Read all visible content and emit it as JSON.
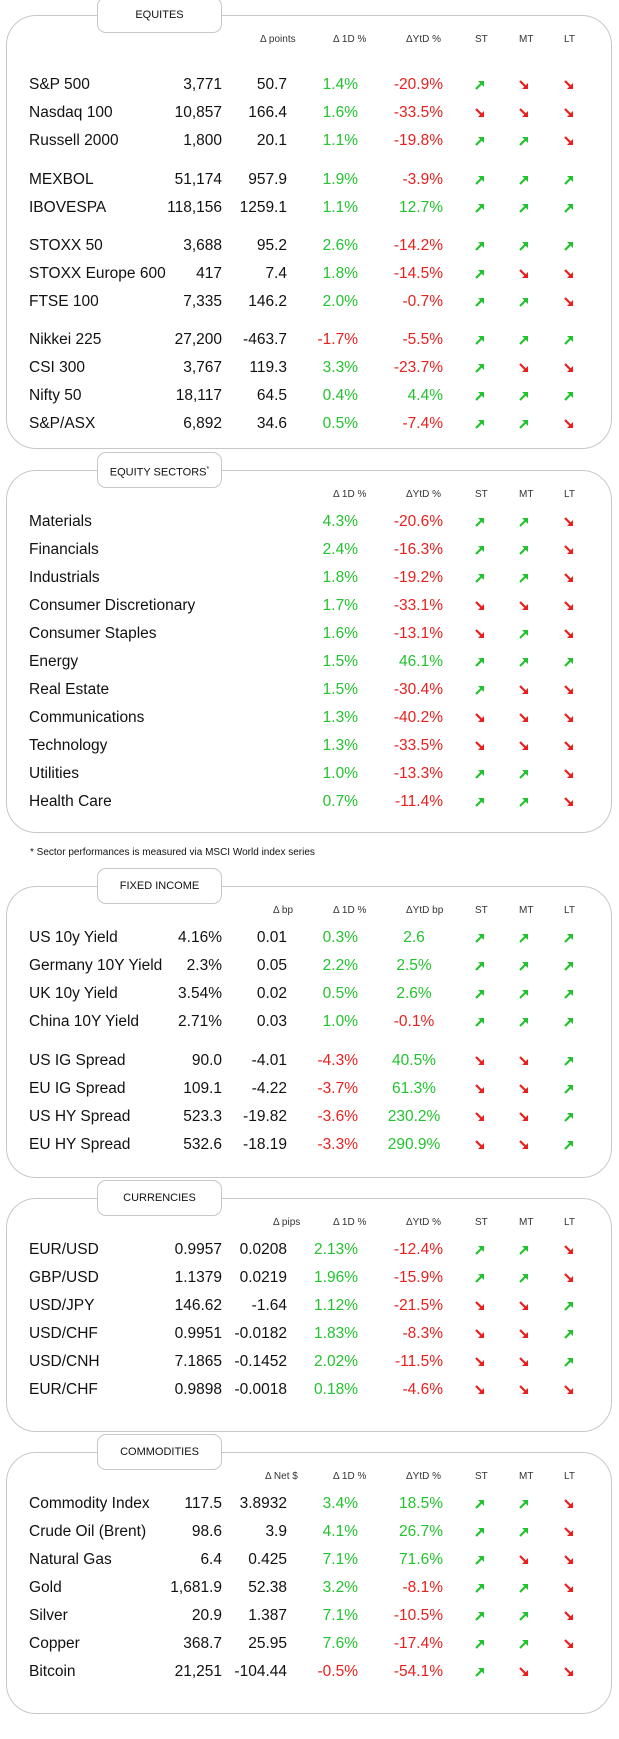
{
  "colors": {
    "up": "#22c32e",
    "down": "#e8201e",
    "border": "#c8c8c8"
  },
  "icons": {
    "up": "arrow-up-right",
    "down": "arrow-down-right"
  },
  "equities": {
    "title": "EQUITES",
    "headers": {
      "chg": "Δ points",
      "d1": "Δ 1D %",
      "ytd": "ΔYtD %",
      "st": "ST",
      "mt": "MT",
      "lt": "LT"
    },
    "rows": [
      {
        "name": "S&P 500",
        "value": "3,771",
        "chg": "50.7",
        "d1": "1.4%",
        "ytd": "-20.9%",
        "st": "up",
        "mt": "down",
        "lt": "down"
      },
      {
        "name": "Nasdaq 100",
        "value": "10,857",
        "chg": "166.4",
        "d1": "1.6%",
        "ytd": "-33.5%",
        "st": "down",
        "mt": "down",
        "lt": "down"
      },
      {
        "name": "Russell 2000",
        "value": "1,800",
        "chg": "20.1",
        "d1": "1.1%",
        "ytd": "-19.8%",
        "st": "up",
        "mt": "up",
        "lt": "down"
      },
      {
        "name": "MEXBOL",
        "value": "51,174",
        "chg": "957.9",
        "d1": "1.9%",
        "ytd": "-3.9%",
        "st": "up",
        "mt": "up",
        "lt": "up"
      },
      {
        "name": "IBOVESPA",
        "value": "118,156",
        "chg": "1259.1",
        "d1": "1.1%",
        "ytd": "12.7%",
        "st": "up",
        "mt": "up",
        "lt": "up"
      },
      {
        "name": "STOXX 50",
        "value": "3,688",
        "chg": "95.2",
        "d1": "2.6%",
        "ytd": "-14.2%",
        "st": "up",
        "mt": "up",
        "lt": "up"
      },
      {
        "name": "STOXX Europe 600",
        "value": "417",
        "chg": "7.4",
        "d1": "1.8%",
        "ytd": "-14.5%",
        "st": "up",
        "mt": "down",
        "lt": "down"
      },
      {
        "name": "FTSE 100",
        "value": "7,335",
        "chg": "146.2",
        "d1": "2.0%",
        "ytd": "-0.7%",
        "st": "up",
        "mt": "up",
        "lt": "down"
      },
      {
        "name": "Nikkei 225",
        "value": "27,200",
        "chg": "-463.7",
        "d1": "-1.7%",
        "ytd": "-5.5%",
        "st": "up",
        "mt": "up",
        "lt": "up"
      },
      {
        "name": "CSI 300",
        "value": "3,767",
        "chg": "119.3",
        "d1": "3.3%",
        "ytd": "-23.7%",
        "st": "up",
        "mt": "down",
        "lt": "down"
      },
      {
        "name": "Nifty  50",
        "value": "18,117",
        "chg": "64.5",
        "d1": "0.4%",
        "ytd": "4.4%",
        "st": "up",
        "mt": "up",
        "lt": "up"
      },
      {
        "name": "S&P/ASX",
        "value": "6,892",
        "chg": "34.6",
        "d1": "0.5%",
        "ytd": "-7.4%",
        "st": "up",
        "mt": "up",
        "lt": "down"
      }
    ]
  },
  "sectors": {
    "title": "EQUITY SECTORS",
    "title_mark": "*",
    "headers": {
      "d1": "Δ 1D %",
      "ytd": "ΔYtD %",
      "st": "ST",
      "mt": "MT",
      "lt": "LT"
    },
    "rows": [
      {
        "name": "Materials",
        "d1": "4.3%",
        "ytd": "-20.6%",
        "st": "up",
        "mt": "up",
        "lt": "down"
      },
      {
        "name": "Financials",
        "d1": "2.4%",
        "ytd": "-16.3%",
        "st": "up",
        "mt": "up",
        "lt": "down"
      },
      {
        "name": "Industrials",
        "d1": "1.8%",
        "ytd": "-19.2%",
        "st": "up",
        "mt": "up",
        "lt": "down"
      },
      {
        "name": "Consumer Discretionary",
        "d1": "1.7%",
        "ytd": "-33.1%",
        "st": "down",
        "mt": "down",
        "lt": "down"
      },
      {
        "name": "Consumer Staples",
        "d1": "1.6%",
        "ytd": "-13.1%",
        "st": "down",
        "mt": "up",
        "lt": "down"
      },
      {
        "name": "Energy",
        "d1": "1.5%",
        "ytd": "46.1%",
        "st": "up",
        "mt": "up",
        "lt": "up"
      },
      {
        "name": "Real Estate",
        "d1": "1.5%",
        "ytd": "-30.4%",
        "st": "up",
        "mt": "down",
        "lt": "down"
      },
      {
        "name": "Communications",
        "d1": "1.3%",
        "ytd": "-40.2%",
        "st": "down",
        "mt": "down",
        "lt": "down"
      },
      {
        "name": "Technology",
        "d1": "1.3%",
        "ytd": "-33.5%",
        "st": "down",
        "mt": "down",
        "lt": "down"
      },
      {
        "name": "Utilities",
        "d1": "1.0%",
        "ytd": "-13.3%",
        "st": "up",
        "mt": "up",
        "lt": "down"
      },
      {
        "name": "Health Care",
        "d1": "0.7%",
        "ytd": "-11.4%",
        "st": "up",
        "mt": "up",
        "lt": "down"
      }
    ],
    "footnote": "* Sector performances is measured via MSCI World index series"
  },
  "fixed_income": {
    "title": "FIXED INCOME",
    "headers": {
      "chg": "Δ bp",
      "d1": "Δ 1D %",
      "ytd": "ΔYtD bp",
      "st": "ST",
      "mt": "MT",
      "lt": "LT"
    },
    "rows": [
      {
        "name": "US 10y Yield",
        "value": "4.16%",
        "chg": "0.01",
        "d1": "0.3%",
        "ytd": "2.6",
        "st": "up",
        "mt": "up",
        "lt": "up"
      },
      {
        "name": "Germany 10Y Yield",
        "value": "2.3%",
        "chg": "0.05",
        "d1": "2.2%",
        "ytd": "2.5%",
        "st": "up",
        "mt": "up",
        "lt": "up"
      },
      {
        "name": "UK 10y Yield",
        "value": "3.54%",
        "chg": "0.02",
        "d1": "0.5%",
        "ytd": "2.6%",
        "st": "up",
        "mt": "up",
        "lt": "up"
      },
      {
        "name": "China 10Y Yield",
        "value": "2.71%",
        "chg": "0.03",
        "d1": "1.0%",
        "ytd": "-0.1%",
        "st": "up",
        "mt": "up",
        "lt": "up"
      },
      {
        "name": "US IG Spread",
        "value": "90.0",
        "chg": "-4.01",
        "d1": "-4.3%",
        "ytd": "40.5%",
        "st": "down",
        "mt": "down",
        "lt": "up"
      },
      {
        "name": "EU IG Spread",
        "value": "109.1",
        "chg": "-4.22",
        "d1": "-3.7%",
        "ytd": "61.3%",
        "st": "down",
        "mt": "down",
        "lt": "up"
      },
      {
        "name": "US HY Spread",
        "value": "523.3",
        "chg": "-19.82",
        "d1": "-3.6%",
        "ytd": "230.2%",
        "st": "down",
        "mt": "down",
        "lt": "up"
      },
      {
        "name": "EU HY Spread",
        "value": "532.6",
        "chg": "-18.19",
        "d1": "-3.3%",
        "ytd": "290.9%",
        "st": "down",
        "mt": "down",
        "lt": "up"
      }
    ]
  },
  "currencies": {
    "title": "CURRENCIES",
    "headers": {
      "chg": "Δ pips",
      "d1": "Δ 1D %",
      "ytd": "ΔYtD %",
      "st": "ST",
      "mt": "MT",
      "lt": "LT"
    },
    "rows": [
      {
        "name": "EUR/USD",
        "value": "0.9957",
        "chg": "0.0208",
        "d1": "2.13%",
        "ytd": "-12.4%",
        "st": "up",
        "mt": "up",
        "lt": "down"
      },
      {
        "name": "GBP/USD",
        "value": "1.1379",
        "chg": "0.0219",
        "d1": "1.96%",
        "ytd": "-15.9%",
        "st": "up",
        "mt": "up",
        "lt": "down"
      },
      {
        "name": "USD/JPY",
        "value": "146.62",
        "chg": "-1.64",
        "d1": "1.12%",
        "ytd": "-21.5%",
        "st": "down",
        "mt": "down",
        "lt": "up"
      },
      {
        "name": "USD/CHF",
        "value": "0.9951",
        "chg": "-0.0182",
        "d1": "1.83%",
        "ytd": "-8.3%",
        "st": "down",
        "mt": "down",
        "lt": "up"
      },
      {
        "name": "USD/CNH",
        "value": "7.1865",
        "chg": "-0.1452",
        "d1": "2.02%",
        "ytd": "-11.5%",
        "st": "down",
        "mt": "down",
        "lt": "up"
      },
      {
        "name": "EUR/CHF",
        "value": "0.9898",
        "chg": "-0.0018",
        "d1": "0.18%",
        "ytd": "-4.6%",
        "st": "down",
        "mt": "down",
        "lt": "down"
      }
    ]
  },
  "commodities": {
    "title": "COMMODITIES",
    "headers": {
      "chg": "Δ Net $",
      "d1": "Δ 1D %",
      "ytd": "ΔYtD %",
      "st": "ST",
      "mt": "MT",
      "lt": "LT"
    },
    "rows": [
      {
        "name": "Commodity Index",
        "value": "117.5",
        "chg": "3.8932",
        "d1": "3.4%",
        "ytd": "18.5%",
        "st": "up",
        "mt": "up",
        "lt": "down"
      },
      {
        "name": "Crude Oil (Brent)",
        "value": "98.6",
        "chg": "3.9",
        "d1": "4.1%",
        "ytd": "26.7%",
        "st": "up",
        "mt": "up",
        "lt": "down"
      },
      {
        "name": "Natural Gas",
        "value": "6.4",
        "chg": "0.425",
        "d1": "7.1%",
        "ytd": "71.6%",
        "st": "up",
        "mt": "down",
        "lt": "down"
      },
      {
        "name": "Gold",
        "value": "1,681.9",
        "chg": "52.38",
        "d1": "3.2%",
        "ytd": "-8.1%",
        "st": "up",
        "mt": "up",
        "lt": "down"
      },
      {
        "name": "Silver",
        "value": "20.9",
        "chg": "1.387",
        "d1": "7.1%",
        "ytd": "-10.5%",
        "st": "up",
        "mt": "up",
        "lt": "down"
      },
      {
        "name": "Copper",
        "value": "368.7",
        "chg": "25.95",
        "d1": "7.6%",
        "ytd": "-17.4%",
        "st": "up",
        "mt": "up",
        "lt": "down"
      },
      {
        "name": "Bitcoin",
        "value": "21,251",
        "chg": "-104.44",
        "d1": "-0.5%",
        "ytd": "-54.1%",
        "st": "up",
        "mt": "down",
        "lt": "down"
      }
    ]
  }
}
